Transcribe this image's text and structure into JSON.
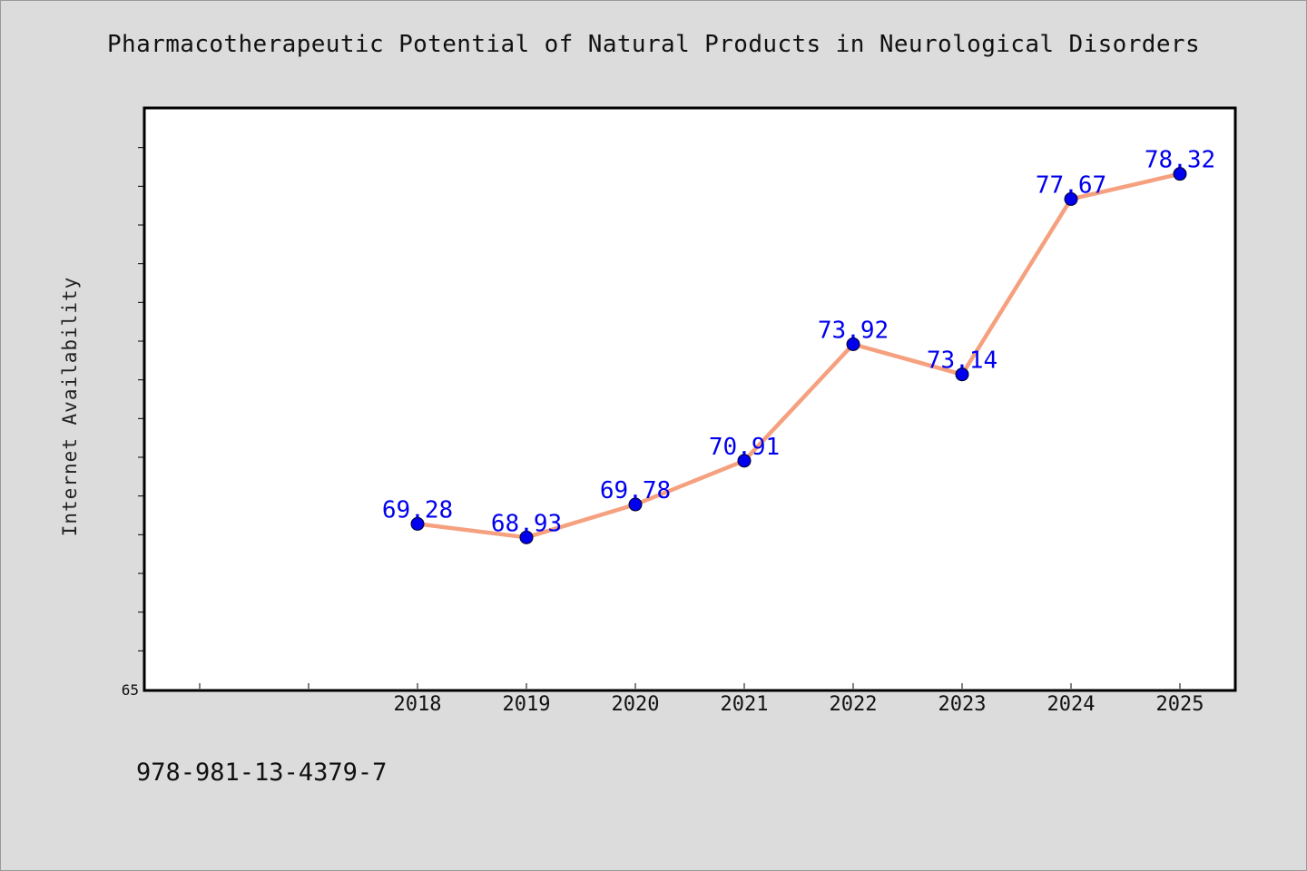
{
  "isbn_text": "978-981-13-4379-7",
  "colors": {
    "background": "#dcdcdc",
    "plot_background": "#ffffff",
    "line": "#f5a07e",
    "marker": "#0000ee",
    "data_label": "#0000ee"
  },
  "chart_data": {
    "type": "line",
    "title": "Pharmacotherapeutic Potential of Natural Products in Neurological Disorders",
    "xlabel": "",
    "ylabel": "Internet Availability",
    "x": [
      "2018",
      "2019",
      "2020",
      "2021",
      "2022",
      "2023",
      "2024",
      "2025"
    ],
    "y_tick_labels": [
      "65"
    ],
    "series": [
      {
        "values": [
          69.28,
          68.93,
          69.78,
          70.91,
          73.92,
          73.14,
          77.67,
          78.32
        ],
        "labels": [
          "69.28",
          "68.93",
          "69.78",
          "70.91",
          "73.92",
          "73.14",
          "77.67",
          "78.32"
        ]
      }
    ],
    "ylim": [
      65,
      80
    ],
    "xlim": [
      2015.5,
      2025.5
    ],
    "grid": false,
    "legend": "none",
    "markers": "circle"
  }
}
